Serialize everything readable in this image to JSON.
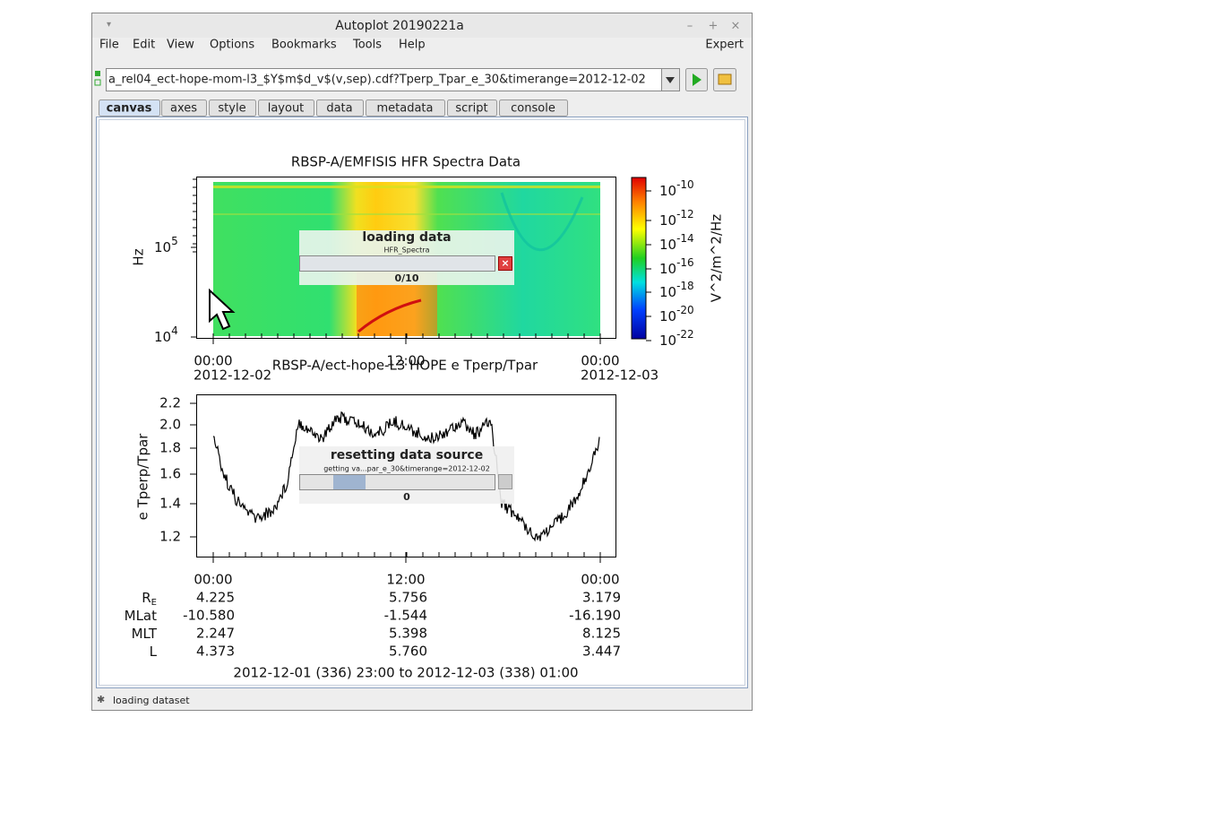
{
  "window": {
    "title": "Autoplot 20190221a",
    "menu": [
      "File",
      "Edit",
      "View",
      "Options",
      "Bookmarks",
      "Tools",
      "Help"
    ],
    "mode": "Expert"
  },
  "address": "a_rel04_ect-hope-mom-l3_$Y$m$d_v$(v,sep).cdf?Tperp_Tpar_e_30&timerange=2012-12-02",
  "tabs": [
    "canvas",
    "axes",
    "style",
    "layout",
    "data",
    "metadata",
    "script",
    "console"
  ],
  "active_tab": 0,
  "plot1": {
    "title": "RBSP-A/EMFISIS  HFR Spectra Data",
    "ylabel": "Hz",
    "yticks": [
      {
        "base": "10",
        "exp": "5"
      },
      {
        "base": "10",
        "exp": "4"
      }
    ],
    "colorbar_label": "V^2/m^2/Hz",
    "colorbar_ticks": [
      {
        "base": "10",
        "exp": "-10"
      },
      {
        "base": "10",
        "exp": "-12"
      },
      {
        "base": "10",
        "exp": "-14"
      },
      {
        "base": "10",
        "exp": "-16"
      },
      {
        "base": "10",
        "exp": "-18"
      },
      {
        "base": "10",
        "exp": "-20"
      },
      {
        "base": "10",
        "exp": "-22"
      }
    ],
    "xticks": [
      {
        "time": "00:00",
        "date": "2012-12-02"
      },
      {
        "time": "12:00"
      },
      {
        "time": "00:00",
        "date": "2012-12-03"
      }
    ],
    "progress": {
      "title": "loading data",
      "subtitle": "HFR_Spectra",
      "count": "0/10"
    }
  },
  "plot2": {
    "title": "RBSP-A/ect-hope-L3  HOPE e Tperp/Tpar",
    "ylabel": "e Tperp/Tpar",
    "yticks": [
      "2.2",
      "2.0",
      "1.8",
      "1.6",
      "1.4",
      "1.2"
    ],
    "xticks": [
      "00:00",
      "12:00",
      "00:00"
    ],
    "progress": {
      "title": "resetting data source",
      "subtitle": "getting va...par_e_30&timerange=2012-12-02",
      "count": "0"
    }
  },
  "ephemeris": [
    {
      "label": "R",
      "sub": "E",
      "values": [
        "4.225",
        "5.756",
        "3.179"
      ]
    },
    {
      "label": "MLat",
      "values": [
        "-10.580",
        "-1.544",
        "-16.190"
      ]
    },
    {
      "label": "MLT",
      "values": [
        "2.247",
        "5.398",
        "8.125"
      ]
    },
    {
      "label": "L",
      "values": [
        "4.373",
        "5.760",
        "3.447"
      ]
    }
  ],
  "time_range": "2012-12-01 (336) 23:00 to 2012-12-03 (338) 01:00",
  "status": "loading dataset"
}
